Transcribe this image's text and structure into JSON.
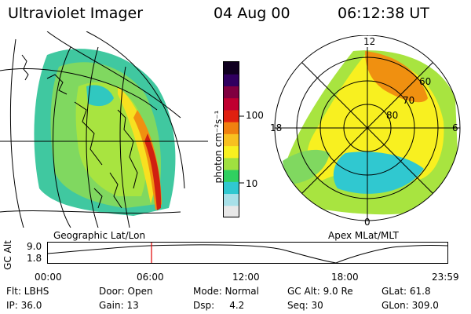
{
  "header": {
    "instrument": "Ultraviolet Imager",
    "date": "04 Aug 00",
    "time": "06:12:38 UT"
  },
  "left_panel": {
    "caption": "Geographic Lat/Lon"
  },
  "right_panel": {
    "caption": "Apex MLat/MLT",
    "lat_labels": [
      "60",
      "70",
      "80"
    ],
    "mlt_labels": [
      "12",
      "18",
      "6",
      "0"
    ]
  },
  "colorbar": {
    "unit_label": "photon cm⁻²s⁻¹",
    "tick_100": "100",
    "tick_10": "10",
    "colors": [
      "#e8e8e8",
      "#a8e0e8",
      "#30c8d0",
      "#30d060",
      "#a0e040",
      "#f8f020",
      "#f8c020",
      "#f08010",
      "#e02010",
      "#c00030",
      "#800040",
      "#300060",
      "#100020"
    ]
  },
  "altitude_plot": {
    "axis_label": "GC Alt",
    "y_max": "9.0",
    "y_min": "1.8",
    "time_ticks": [
      "00:00",
      "06:00",
      "12:00",
      "18:00",
      "23:59"
    ],
    "marker_color": "#e00000"
  },
  "info": {
    "filter": "Flt: LBHS",
    "ip": "IP: 36.0",
    "door": "Door: Open",
    "gain": "Gain: 13",
    "mode": "Mode: Normal",
    "dsp": "Dsp:     4.2",
    "gc_alt": "GC Alt: 9.0 Re",
    "seq": "Seq: 30",
    "glat": "GLat: 61.8",
    "glon": "GLon: 309.0"
  }
}
